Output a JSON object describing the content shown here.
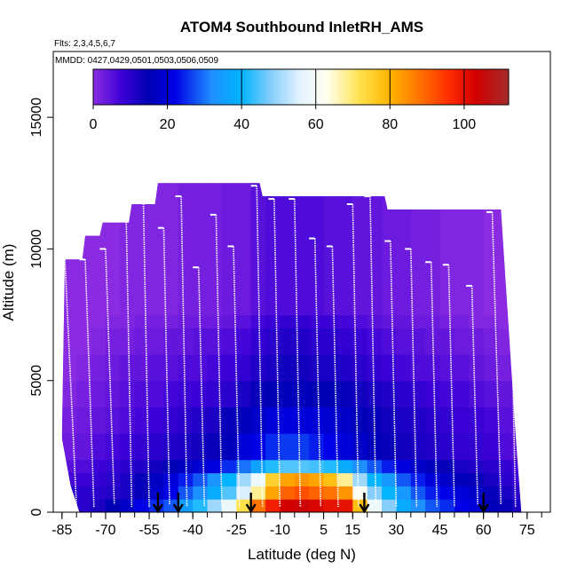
{
  "chart_data": {
    "type": "heatmap",
    "title": "ATOM4 Southbound InletRH_AMS",
    "subtitle_flights": "Flts: 2,3,4,5,6,7",
    "subtitle_dates": "MMDD: 0427,0429,0501,0503,0506,0509",
    "xlabel": "Latitude (deg N)",
    "ylabel": "Altitude (m)",
    "xlim": [
      -88,
      83
    ],
    "ylim": [
      0,
      17500
    ],
    "x_ticks": [
      -85,
      -70,
      -55,
      -40,
      -25,
      -10,
      5,
      15,
      30,
      45,
      60,
      75
    ],
    "x_tick_labels": [
      "-85",
      "-70",
      "-55",
      "-40",
      "-25",
      "-10",
      "5",
      "15",
      "30",
      "45",
      "60",
      "75"
    ],
    "y_ticks": [
      0,
      5000,
      10000,
      15000
    ],
    "y_tick_labels": [
      "0",
      "5000",
      "10000",
      "15000"
    ],
    "colorbar": {
      "min": 0,
      "max": 112,
      "ticks": [
        0,
        20,
        40,
        60,
        80,
        100
      ],
      "tick_labels": [
        "0",
        "20",
        "40",
        "60",
        "80",
        "100"
      ],
      "stops": [
        {
          "v": 0,
          "color": "#8a2be2"
        },
        {
          "v": 8,
          "color": "#3a00d6"
        },
        {
          "v": 15,
          "color": "#0000b4"
        },
        {
          "v": 22,
          "color": "#0000e6"
        },
        {
          "v": 32,
          "color": "#1e90ff"
        },
        {
          "v": 40,
          "color": "#00b4ff"
        },
        {
          "v": 48,
          "color": "#87cefa"
        },
        {
          "v": 56,
          "color": "#e6f5ff"
        },
        {
          "v": 63,
          "color": "#fffff0"
        },
        {
          "v": 72,
          "color": "#ffe14b"
        },
        {
          "v": 80,
          "color": "#ffb400"
        },
        {
          "v": 88,
          "color": "#ff7300"
        },
        {
          "v": 96,
          "color": "#ff2d00"
        },
        {
          "v": 103,
          "color": "#d20000"
        },
        {
          "v": 112,
          "color": "#a52a2a"
        }
      ]
    },
    "envelope_top_km": [
      {
        "lat": -85,
        "top": 3.0
      },
      {
        "lat": -84,
        "top": 9.6
      },
      {
        "lat": -78,
        "top": 9.6
      },
      {
        "lat": -77,
        "top": 10.5
      },
      {
        "lat": -72,
        "top": 10.5
      },
      {
        "lat": -71,
        "top": 11.0
      },
      {
        "lat": -62,
        "top": 11.0
      },
      {
        "lat": -61,
        "top": 11.7
      },
      {
        "lat": -53,
        "top": 11.7
      },
      {
        "lat": -52,
        "top": 12.5
      },
      {
        "lat": -17,
        "top": 12.5
      },
      {
        "lat": -16,
        "top": 12.0
      },
      {
        "lat": 26,
        "top": 12.0
      },
      {
        "lat": 27,
        "top": 11.5
      },
      {
        "lat": 66,
        "top": 11.5
      },
      {
        "lat": 71,
        "top": 3.0
      }
    ],
    "envelope_bottom_km": [
      {
        "lat": -85,
        "top": 2.8
      },
      {
        "lat": -82,
        "top": 1.0
      },
      {
        "lat": -79,
        "top": 0.0
      },
      {
        "lat": 73,
        "top": 0.0
      }
    ],
    "rh_grid": {
      "lat_bins": [
        -85,
        -80,
        -75,
        -70,
        -65,
        -60,
        -55,
        -50,
        -45,
        -40,
        -35,
        -30,
        -25,
        -20,
        -15,
        -10,
        -5,
        0,
        5,
        10,
        15,
        20,
        25,
        30,
        35,
        40,
        45,
        50,
        55,
        60,
        65,
        70
      ],
      "alt_bins_km": [
        0,
        0.5,
        1,
        1.5,
        2,
        3,
        4,
        5,
        6,
        7,
        7.5,
        13
      ],
      "values": [
        [
          14,
          10,
          12,
          15,
          18,
          22,
          25,
          28,
          35,
          42,
          50,
          58,
          72,
          88,
          98,
          103,
          104,
          102,
          100,
          100,
          78,
          58,
          48,
          38,
          32,
          28,
          25,
          22,
          20,
          16,
          14,
          12
        ],
        [
          10,
          10,
          10,
          11,
          12,
          14,
          18,
          22,
          28,
          32,
          38,
          45,
          55,
          68,
          82,
          90,
          92,
          90,
          88,
          84,
          62,
          48,
          40,
          34,
          28,
          24,
          22,
          20,
          18,
          14,
          12,
          10
        ],
        [
          7,
          8,
          9,
          10,
          12,
          14,
          17,
          20,
          24,
          28,
          33,
          40,
          50,
          58,
          75,
          82,
          84,
          82,
          78,
          68,
          50,
          40,
          34,
          28,
          24,
          20,
          18,
          16,
          14,
          12,
          10,
          8
        ],
        [
          5,
          6,
          8,
          9,
          10,
          11,
          13,
          15,
          17,
          19,
          21,
          25,
          30,
          36,
          42,
          45,
          45,
          44,
          42,
          38,
          32,
          28,
          24,
          21,
          18,
          16,
          14,
          12,
          11,
          10,
          9,
          7
        ],
        [
          3,
          4,
          6,
          7,
          8,
          9,
          10,
          11,
          12,
          13,
          14,
          16,
          20,
          22,
          25,
          26,
          26,
          24,
          22,
          20,
          18,
          16,
          14,
          13,
          12,
          11,
          10,
          9,
          9,
          8,
          6,
          4
        ],
        [
          2,
          3,
          4,
          5,
          6,
          7,
          8,
          9,
          10,
          11,
          12,
          14,
          16,
          18,
          20,
          21,
          20,
          20,
          19,
          18,
          16,
          14,
          13,
          12,
          11,
          10,
          9,
          8,
          8,
          7,
          5,
          3
        ],
        [
          1,
          2,
          3,
          4,
          5,
          6,
          6,
          7,
          8,
          8,
          9,
          10,
          12,
          14,
          15,
          16,
          16,
          15,
          15,
          14,
          13,
          12,
          11,
          10,
          9,
          8,
          7,
          7,
          6,
          5,
          4,
          2
        ],
        [
          0,
          1,
          2,
          3,
          4,
          4,
          5,
          5,
          6,
          6,
          7,
          8,
          9,
          11,
          12,
          13,
          13,
          12,
          12,
          11,
          10,
          9,
          8,
          7,
          6,
          6,
          5,
          5,
          4,
          3,
          2,
          1
        ],
        [
          0,
          0,
          1,
          2,
          2,
          3,
          3,
          4,
          4,
          5,
          5,
          6,
          7,
          9,
          10,
          11,
          11,
          10,
          10,
          9,
          8,
          7,
          6,
          5,
          5,
          4,
          4,
          3,
          3,
          2,
          1,
          0
        ],
        [
          0,
          0,
          0,
          1,
          1,
          2,
          2,
          2,
          3,
          3,
          3,
          4,
          5,
          7,
          8,
          9,
          9,
          8,
          8,
          7,
          6,
          5,
          4,
          4,
          3,
          3,
          2,
          2,
          1,
          1,
          0,
          0
        ],
        [
          0,
          0,
          0,
          0,
          1,
          1,
          1,
          1,
          2,
          2,
          2,
          3,
          3,
          5,
          6,
          6,
          6,
          6,
          5,
          5,
          4,
          4,
          3,
          3,
          2,
          2,
          1,
          1,
          1,
          0,
          0,
          0
        ]
      ]
    },
    "flight_profiles": [
      {
        "lat_top": -84,
        "top": 9.6,
        "lat_bottom": -80,
        "bottom": 0.2
      },
      {
        "lat_top": -77,
        "top": 9.6,
        "lat_bottom": -74,
        "bottom": 0.2
      },
      {
        "lat_top": -70,
        "top": 10.0,
        "lat_bottom": -67,
        "bottom": 0.3
      },
      {
        "lat_top": -63,
        "top": 11.7,
        "lat_bottom": -61,
        "bottom": 0.2
      },
      {
        "lat_top": -57,
        "top": 11.8,
        "lat_bottom": -55,
        "bottom": 0.2
      },
      {
        "lat_top": -50,
        "top": 10.8,
        "lat_bottom": -48,
        "bottom": 0.3
      },
      {
        "lat_top": -44,
        "top": 12.0,
        "lat_bottom": -42,
        "bottom": 0.2
      },
      {
        "lat_top": -38,
        "top": 9.3,
        "lat_bottom": -36,
        "bottom": 0.2
      },
      {
        "lat_top": -32,
        "top": 11.3,
        "lat_bottom": -30,
        "bottom": 0.2
      },
      {
        "lat_top": -26,
        "top": 10.1,
        "lat_bottom": -24,
        "bottom": 0.2
      },
      {
        "lat_top": -18,
        "top": 12.4,
        "lat_bottom": -16,
        "bottom": 0.2
      },
      {
        "lat_top": -12,
        "top": 11.9,
        "lat_bottom": -10,
        "bottom": 0.2
      },
      {
        "lat_top": -5,
        "top": 11.9,
        "lat_bottom": -3,
        "bottom": 0.2
      },
      {
        "lat_top": 2,
        "top": 10.4,
        "lat_bottom": 4,
        "bottom": 0.2
      },
      {
        "lat_top": 8,
        "top": 10.1,
        "lat_bottom": 10,
        "bottom": 0.2
      },
      {
        "lat_top": 15,
        "top": 11.7,
        "lat_bottom": 17,
        "bottom": 0.2
      },
      {
        "lat_top": 21,
        "top": 12.0,
        "lat_bottom": 23,
        "bottom": 0.2
      },
      {
        "lat_top": 28,
        "top": 10.3,
        "lat_bottom": 30,
        "bottom": 0.2
      },
      {
        "lat_top": 35,
        "top": 10.0,
        "lat_bottom": 37,
        "bottom": 0.2
      },
      {
        "lat_top": 42,
        "top": 9.5,
        "lat_bottom": 44,
        "bottom": 0.2
      },
      {
        "lat_top": 48,
        "top": 9.4,
        "lat_bottom": 50,
        "bottom": 0.2
      },
      {
        "lat_top": 56,
        "top": 8.6,
        "lat_bottom": 58,
        "bottom": 0.3
      },
      {
        "lat_top": 63,
        "top": 11.4,
        "lat_bottom": 66,
        "bottom": 0.3
      },
      {
        "lat_top": 69,
        "top": 11.3,
        "lat_bottom": 71,
        "bottom": 0.2
      }
    ],
    "arrow_latitudes": [
      -52,
      -45,
      -20,
      19,
      60
    ]
  }
}
